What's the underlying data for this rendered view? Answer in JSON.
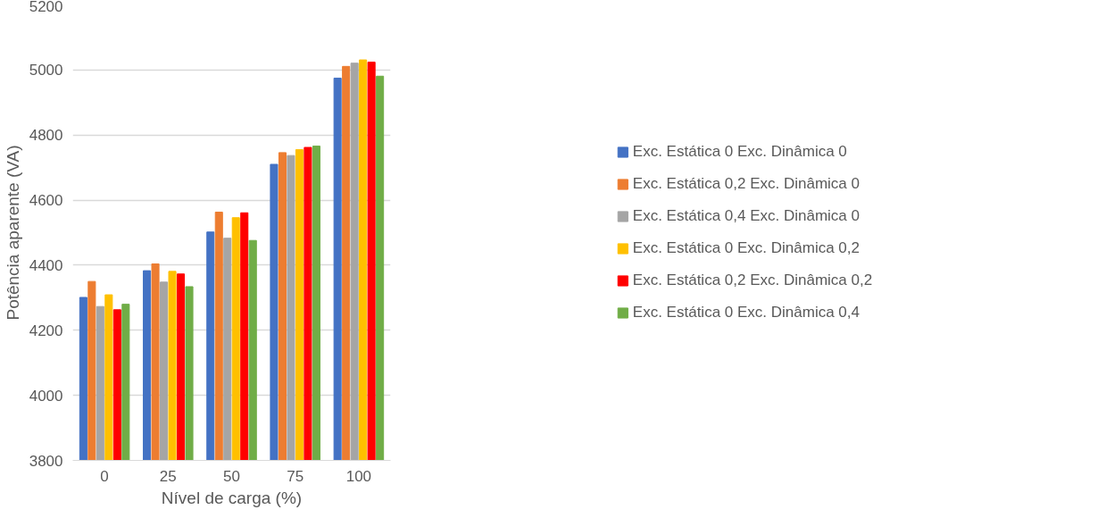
{
  "chart_data": {
    "type": "bar",
    "xlabel": "Nível de carga (%)",
    "ylabel": "Potência aparente (VA)",
    "categories": [
      "0",
      "25",
      "50",
      "75",
      "100"
    ],
    "series": [
      {
        "name": "Exc. Estática 0 Exc. Dinâmica 0",
        "color": "#4472c4",
        "values": [
          4301,
          4383,
          4502,
          4710,
          4975
        ]
      },
      {
        "name": "Exc. Estática 0,2 Exc. Dinâmica 0",
        "color": "#ed7d31",
        "values": [
          4350,
          4404,
          4563,
          4746,
          5011
        ]
      },
      {
        "name": "Exc. Estática 0,4 Exc. Dinâmica 0",
        "color": "#a5a5a5",
        "values": [
          4273,
          4348,
          4483,
          4737,
          5021
        ]
      },
      {
        "name": "Exc. Estática 0 Exc. Dinâmica 0,2",
        "color": "#ffc000",
        "values": [
          4309,
          4381,
          4546,
          4755,
          5031
        ]
      },
      {
        "name": "Exc. Estática 0,2 Exc. Dinâmica 0,2",
        "color": "#ff0000",
        "values": [
          4263,
          4373,
          4561,
          4762,
          5024
        ]
      },
      {
        "name": "Exc. Estática 0 Exc. Dinâmica 0,4",
        "color": "#70ad47",
        "values": [
          4280,
          4334,
          4476,
          4766,
          4981
        ]
      }
    ],
    "ylim": [
      3800,
      5200
    ],
    "yticks": [
      3800,
      4000,
      4200,
      4400,
      4600,
      4800,
      5000,
      5200
    ],
    "grid": "y",
    "legend": "right"
  }
}
